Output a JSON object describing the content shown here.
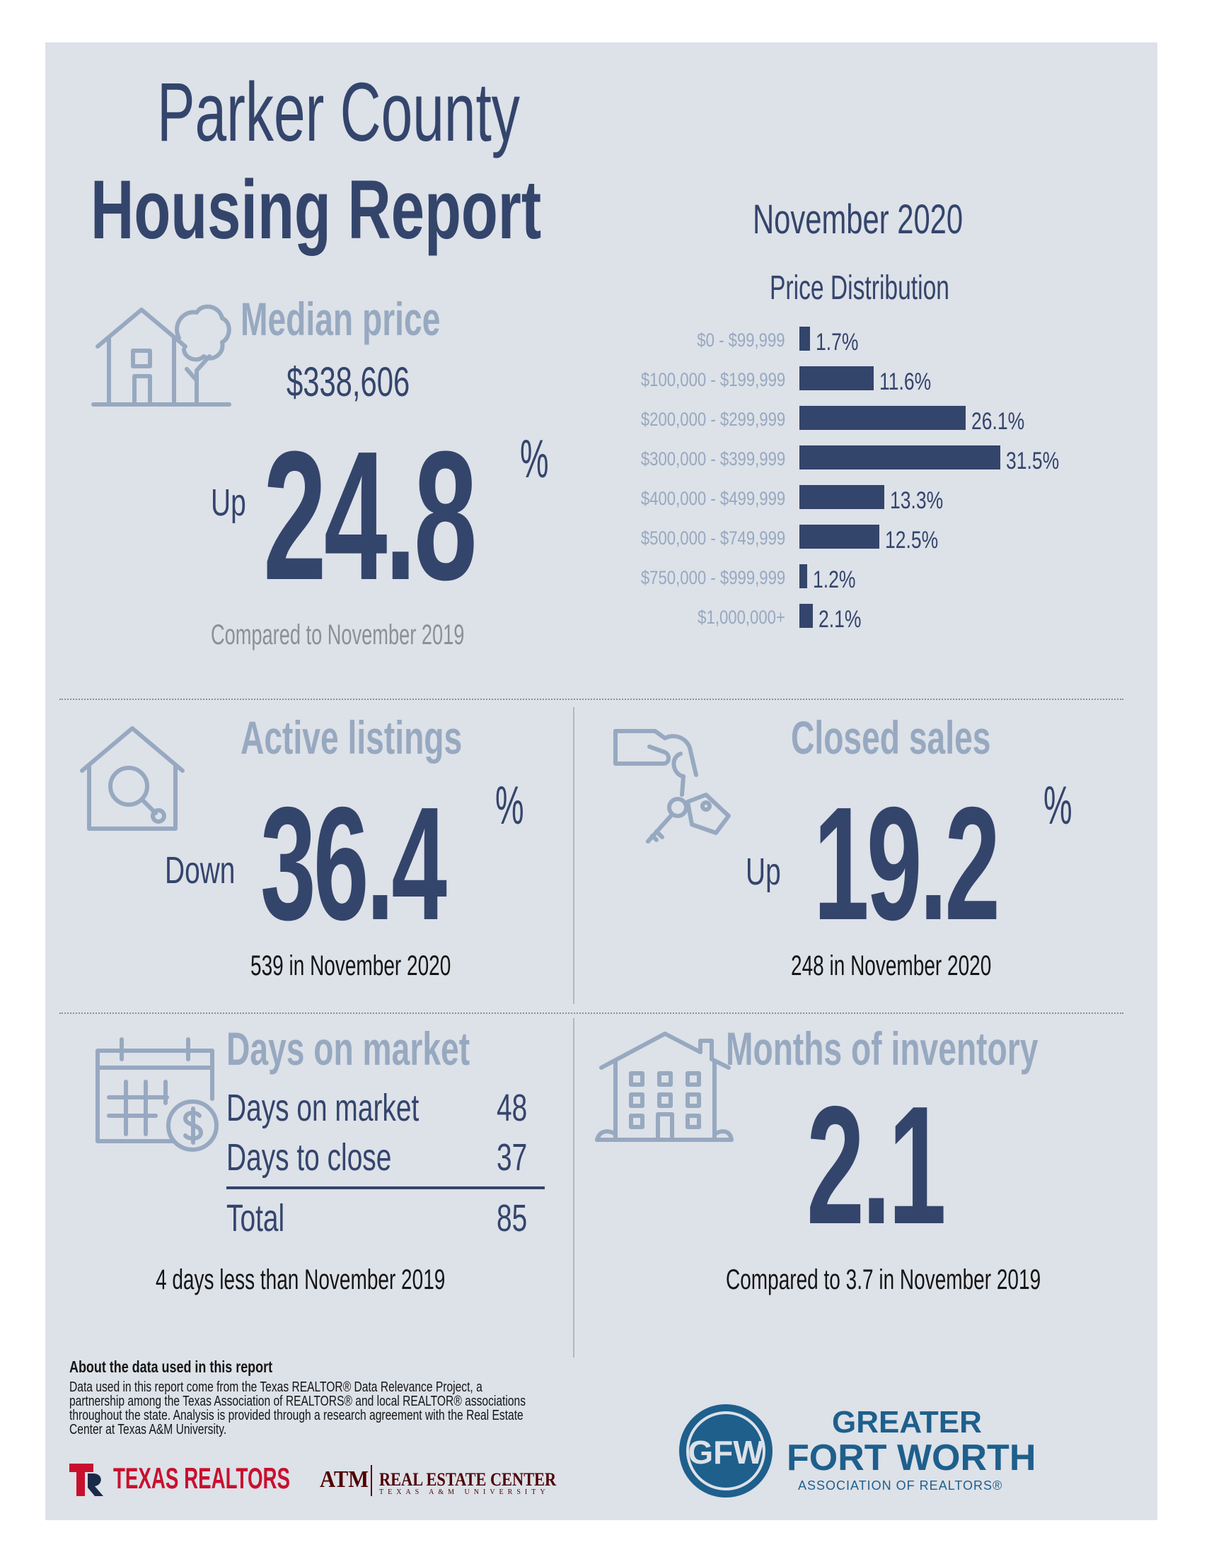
{
  "title": {
    "line1": "Parker County",
    "line2": "Housing Report"
  },
  "period": "November 2020",
  "median_price": {
    "heading": "Median price",
    "value": "$338,606",
    "direction": "Up",
    "percent": "24.8",
    "percent_sign": "%",
    "comparison": "Compared to November 2019",
    "icon": "house-with-tree-icon"
  },
  "price_distribution": {
    "heading": "Price Distribution",
    "bar_color": "#34456c"
  },
  "chart_data": {
    "type": "bar",
    "orientation": "horizontal",
    "title": "Price Distribution",
    "categories": [
      "$0 - $99,999",
      "$100,000 - $199,999",
      "$200,000 - $299,999",
      "$300,000 - $399,999",
      "$400,000 - $499,999",
      "$500,000 - $749,999",
      "$750,000 - $999,999",
      "$1,000,000+"
    ],
    "values": [
      1.7,
      11.6,
      26.1,
      31.5,
      13.3,
      12.5,
      1.2,
      2.1
    ],
    "value_labels": [
      "1.7%",
      "11.6%",
      "26.1%",
      "31.5%",
      "13.3%",
      "12.5%",
      "1.2%",
      "2.1%"
    ]
  },
  "active_listings": {
    "heading": "Active listings",
    "direction": "Down",
    "percent": "36.4",
    "percent_sign": "%",
    "detail": "539 in November 2020",
    "icon": "house-magnifier-icon"
  },
  "closed_sales": {
    "heading": "Closed sales",
    "direction": "Up",
    "percent": "19.2",
    "percent_sign": "%",
    "detail": "248 in November 2020",
    "icon": "hand-with-keys-icon"
  },
  "days_on_market": {
    "heading": "Days on market",
    "rows": [
      {
        "label": "Days on market",
        "value": "48"
      },
      {
        "label": "Days to close",
        "value": "37"
      }
    ],
    "total": {
      "label": "Total",
      "value": "85"
    },
    "comparison": "4 days less than November 2019",
    "icon": "calendar-dollar-icon"
  },
  "months_of_inventory": {
    "heading": "Months of inventory",
    "value": "2.1",
    "comparison": "Compared to 3.7 in November 2019",
    "icon": "apartment-building-icon"
  },
  "about": {
    "heading": "About the data used in this report",
    "body": "Data used in this report come from the Texas REALTOR® Data Relevance Project, a partnership among the Texas Association of REALTORS® and local REALTOR® associations throughout the state. Analysis is provided through a research agreement with the Real Estate Center at Texas A&M University."
  },
  "logos": {
    "texas_realtors": "TEXAS REALTORS",
    "tamu_mark": "ATM",
    "real_estate_center": "REAL ESTATE CENTER",
    "real_estate_center_sub": "TEXAS A&M UNIVERSITY",
    "gfw_line1": "GREATER",
    "gfw_line2": "FORT WORTH",
    "gfw_line3": "ASSOCIATION OF REALTORS®",
    "gfw_badge": "GFW"
  },
  "colors": {
    "navy": "#34456c",
    "muted_blue": "#97a9c0",
    "background": "#dde1e8",
    "texas_red": "#c8102e",
    "gfw_blue": "#1e5f8c"
  }
}
